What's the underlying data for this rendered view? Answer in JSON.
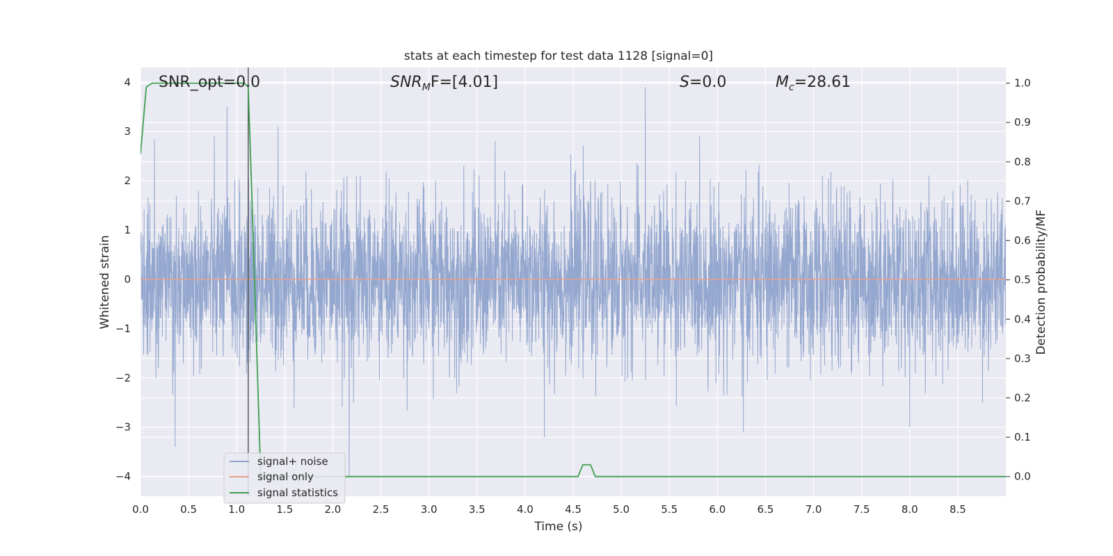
{
  "chart_data": {
    "type": "line",
    "title": "stats at each timestep for test data 1128 [signal=0]",
    "xlabel": "Time (s)",
    "ylabel": "Whitened strain",
    "y2label": "Detection probability/MF",
    "xlim": [
      0.0,
      9.0
    ],
    "ylim": [
      -4.4,
      4.3
    ],
    "y2lim": [
      -0.05,
      1.04
    ],
    "x_ticks": [
      0.0,
      0.5,
      1.0,
      1.5,
      2.0,
      2.5,
      3.0,
      3.5,
      4.0,
      4.5,
      5.0,
      5.5,
      6.0,
      6.5,
      7.0,
      7.5,
      8.0,
      8.5
    ],
    "y_ticks": [
      -4,
      -3,
      -2,
      -1,
      0,
      1,
      2,
      3,
      4
    ],
    "y_tick_labels": [
      "−4",
      "−3",
      "−2",
      "−1",
      "0",
      "1",
      "2",
      "3",
      "4"
    ],
    "y2_ticks": [
      0.0,
      0.1,
      0.2,
      0.3,
      0.4,
      0.5,
      0.6,
      0.7,
      0.8,
      0.9,
      1.0
    ],
    "grid": true,
    "legend_position": "lower-left",
    "annotations": {
      "snr_opt": "SNR_opt=0.0",
      "snr_mf_prefix": "SNR",
      "snr_mf_sub": "M",
      "snr_mf_suffix": "F=[4.01]",
      "s_prefix": "S",
      "s_suffix": "=0.0",
      "mc_prefix": "M",
      "mc_sub": "c",
      "mc_suffix": "=28.61"
    },
    "series": [
      {
        "name": "signal+ noise",
        "color": "#8fa3cc",
        "axis": "left",
        "description_values": "whitened strain noise, approx. range -4.0 to 3.9, sampled densely over 0-9 s",
        "peaks": [
          [
            0.9,
            3.5
          ],
          [
            1.43,
            3.1
          ],
          [
            2.17,
            -4.0
          ],
          [
            5.25,
            3.9
          ],
          [
            0.36,
            -3.4
          ],
          [
            4.2,
            -3.2
          ],
          [
            6.27,
            -3.1
          ],
          [
            8.0,
            -3.0
          ]
        ]
      },
      {
        "name": "signal only",
        "color": "#e8a088",
        "axis": "left",
        "x": [
          0.0,
          9.0
        ],
        "y": [
          0.0,
          0.0
        ]
      },
      {
        "name": "signal statistics",
        "color": "#3d9e4f",
        "axis": "right",
        "x": [
          0.0,
          0.06,
          0.12,
          0.5,
          1.0,
          1.08,
          1.12,
          1.16,
          1.25,
          1.3,
          2.0,
          3.0,
          4.0,
          4.55,
          4.6,
          4.68,
          4.73,
          5.0,
          6.0,
          7.0,
          8.0,
          9.0
        ],
        "y": [
          0.82,
          0.99,
          1.0,
          1.0,
          1.0,
          1.0,
          0.99,
          0.7,
          0.0,
          0.0,
          0.0,
          0.0,
          0.0,
          0.0,
          0.03,
          0.03,
          0.0,
          0.0,
          0.0,
          0.0,
          0.0,
          0.0
        ]
      }
    ],
    "vertical_marker": {
      "x": 1.12,
      "color": "#555555"
    }
  }
}
